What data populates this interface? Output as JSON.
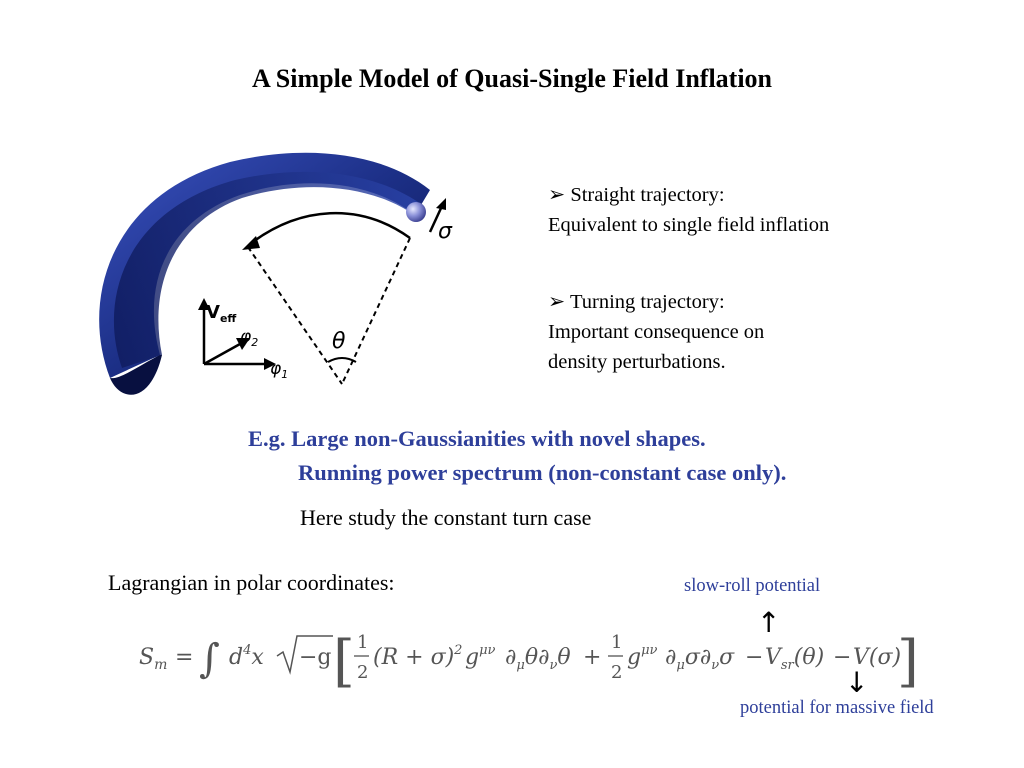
{
  "slide": {
    "title": "A Simple Model of Quasi-Single Field Inflation",
    "figure": {
      "labels": {
        "sigma": "σ",
        "theta": "θ",
        "veff_v": "V",
        "veff_sub": "eff",
        "phi2": "φ",
        "phi2_sub": "2",
        "phi1": "φ",
        "phi1_sub": "1"
      }
    },
    "bullets": [
      {
        "marker": "➢",
        "heading": "Straight trajectory:",
        "lines": [
          "Equivalent to single field inflation"
        ]
      },
      {
        "marker": "➢",
        "heading": "Turning trajectory:",
        "lines": [
          "Important consequence on",
          "density perturbations."
        ]
      }
    ],
    "emphasis": [
      "E.g. Large non-Gaussianities with novel shapes.",
      "Running power spectrum (non-constant case only)."
    ],
    "study_note": "Here study the constant turn case",
    "lagrangian_label": "Lagrangian in polar coordinates:",
    "annotations": {
      "slow_roll": "slow-roll potential",
      "massive": "potential for massive field",
      "up_arrow": "↑",
      "down_arrow": "↓"
    },
    "equation": {
      "S": "S",
      "S_sub": "m",
      "eq": "=",
      "int": "∫",
      "d": "d",
      "d_sup": "4",
      "x": "x",
      "sqrt_arg": "−g",
      "lbr": "[",
      "rbr": "]",
      "half_num": "1",
      "half_den": "2",
      "term1": "(R + σ)",
      "term1_sup": "2",
      "g": "g",
      "g_sup": "μν",
      "dmu_theta": "∂",
      "mu": "μ",
      "theta": "θ",
      "nu": "ν",
      "plus": "+",
      "sigma": "σ",
      "minus1": "−",
      "V": "V",
      "sr": "sr",
      "theta_arg": "(θ)",
      "minus2": "−",
      "sigma_arg": "(σ)"
    },
    "colors": {
      "accent": "#2e3f9a",
      "tube": "#1c2f86"
    }
  }
}
